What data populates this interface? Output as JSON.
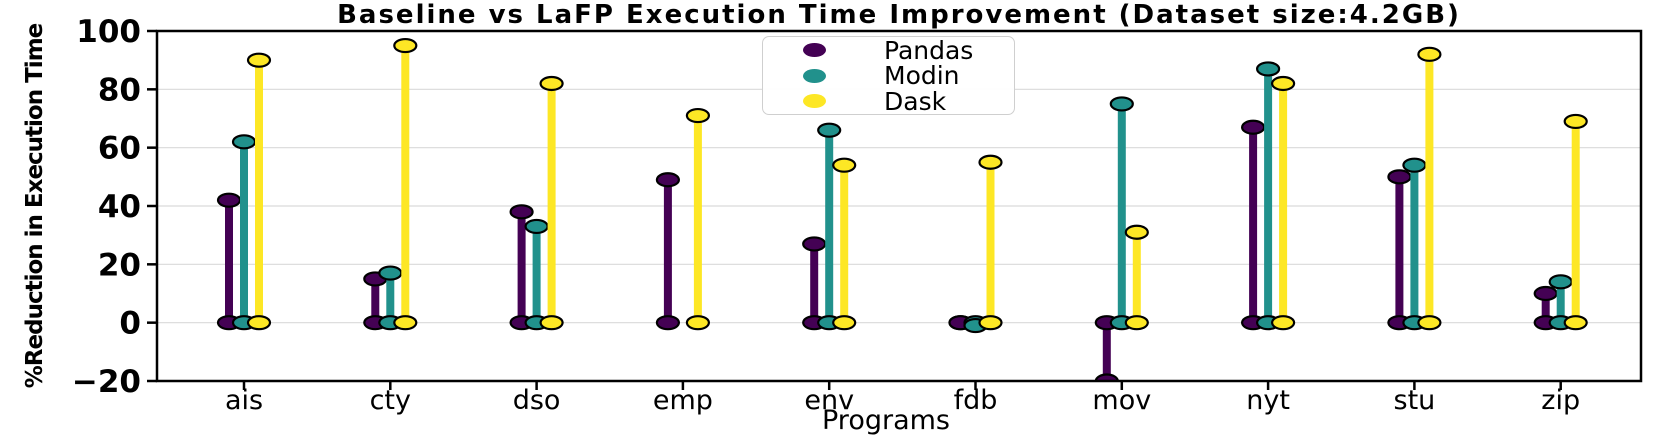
{
  "figure": {
    "title": "Baseline vs LaFP Execution Time Improvement (Dataset size:4.2GB)",
    "xlabel": "Programs",
    "ylabel": "%Reduction in Execution Time"
  },
  "legend": {
    "entries": [
      {
        "label": "Pandas",
        "color": "#440154"
      },
      {
        "label": "Modin",
        "color": "#21918c"
      },
      {
        "label": "Dask",
        "color": "#fde725"
      }
    ]
  },
  "chart_data": {
    "type": "stem",
    "title": "Baseline vs LaFP Execution Time Improvement (Dataset size:4.2GB)",
    "xlabel": "Programs",
    "ylabel": "%Reduction in Execution Time",
    "categories": [
      "ais",
      "cty",
      "dso",
      "emp",
      "env",
      "fdb",
      "mov",
      "nyt",
      "stu",
      "zip"
    ],
    "series": [
      {
        "name": "Pandas",
        "color": "#440154",
        "values": [
          42,
          15,
          38,
          49,
          27,
          0,
          -20,
          67,
          50,
          10
        ]
      },
      {
        "name": "Modin",
        "color": "#21918c",
        "values": [
          62,
          17,
          33,
          null,
          66,
          -1,
          75,
          87,
          54,
          14
        ]
      },
      {
        "name": "Dask",
        "color": "#fde725",
        "values": [
          90,
          95,
          82,
          71,
          54,
          55,
          31,
          82,
          92,
          69
        ]
      }
    ],
    "ylim": [
      -20,
      100
    ],
    "yticks": [
      -20,
      0,
      20,
      40,
      60,
      80,
      100
    ],
    "grid": true,
    "grid_color": "#d9d9d9",
    "marker": "ellipse, black edge, at baseline and value of each stem",
    "legend_position": "top-center",
    "background": "#ffffff"
  }
}
